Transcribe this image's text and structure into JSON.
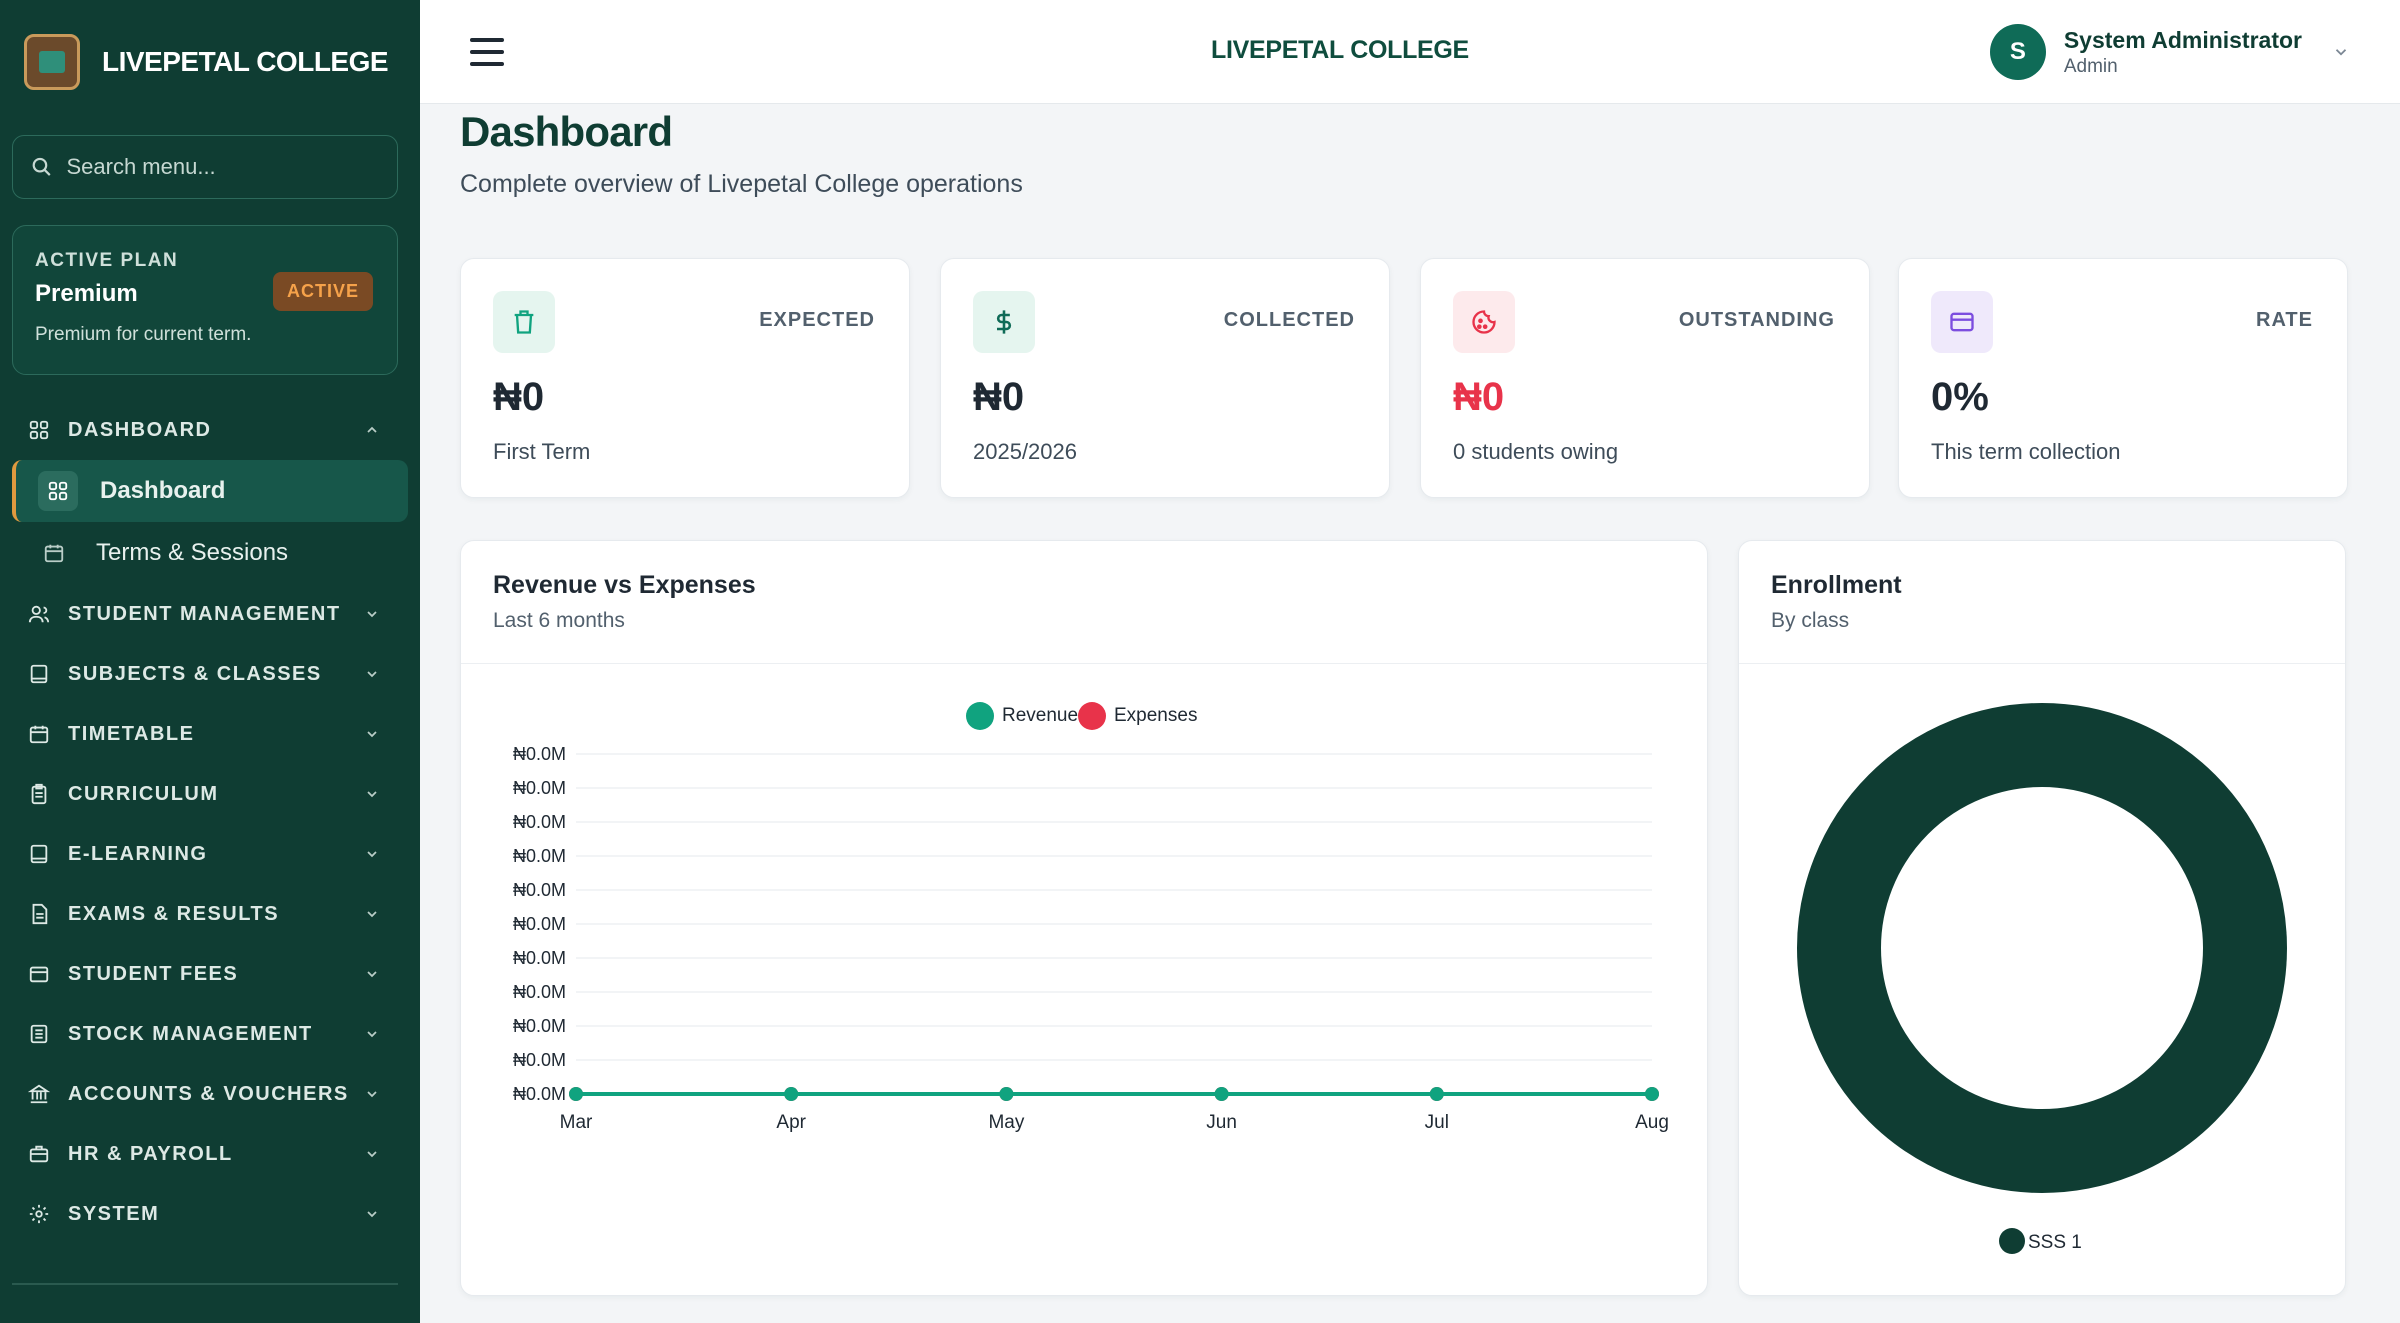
{
  "sidebar": {
    "brand": "LIVEPETAL COLLEGE",
    "search_placeholder": "Search menu...",
    "plan": {
      "label": "ACTIVE PLAN",
      "name": "Premium",
      "badge": "ACTIVE",
      "description": "Premium for current term."
    },
    "sections": [
      {
        "label": "DASHBOARD",
        "icon": "grid-icon"
      },
      {
        "label": "STUDENT MANAGEMENT",
        "icon": "users-icon"
      },
      {
        "label": "SUBJECTS & CLASSES",
        "icon": "book-icon"
      },
      {
        "label": "TIMETABLE",
        "icon": "calendar-icon"
      },
      {
        "label": "CURRICULUM",
        "icon": "clipboard-icon"
      },
      {
        "label": "E-LEARNING",
        "icon": "book-icon"
      },
      {
        "label": "EXAMS & RESULTS",
        "icon": "file-icon"
      },
      {
        "label": "STUDENT FEES",
        "icon": "wallet-icon"
      },
      {
        "label": "STOCK MANAGEMENT",
        "icon": "list-icon"
      },
      {
        "label": "ACCOUNTS & VOUCHERS",
        "icon": "bank-icon"
      },
      {
        "label": "HR & PAYROLL",
        "icon": "briefcase-icon"
      },
      {
        "label": "SYSTEM",
        "icon": "gear-icon"
      }
    ],
    "dashboard_items": [
      {
        "label": "Dashboard",
        "active": true
      },
      {
        "label": "Terms & Sessions",
        "active": false
      }
    ]
  },
  "topbar": {
    "title": "LIVEPETAL COLLEGE",
    "user_initial": "S",
    "user_name": "System Administrator",
    "user_role": "Admin"
  },
  "page": {
    "title": "Dashboard",
    "subtitle": "Complete overview of Livepetal College operations"
  },
  "stats": [
    {
      "label": "EXPECTED",
      "value": "₦0",
      "sub": "First Term",
      "icon": "trash-icon",
      "color": "#1f2933",
      "icon_bg": "#e5f5ef",
      "icon_color": "#10a37f"
    },
    {
      "label": "COLLECTED",
      "value": "₦0",
      "sub": "2025/2026",
      "icon": "dollar-icon",
      "color": "#1f2933",
      "icon_bg": "#e5f5ef",
      "icon_color": "#0f6b57"
    },
    {
      "label": "OUTSTANDING",
      "value": "₦0",
      "sub": "0 students owing",
      "icon": "cookie-icon",
      "color": "#e8334a",
      "icon_bg": "#fdeaec",
      "icon_color": "#e8334a"
    },
    {
      "label": "RATE",
      "value": "0%",
      "sub": "This term collection",
      "icon": "card-icon",
      "color": "#1f2933",
      "icon_bg": "#efe9fb",
      "icon_color": "#7c4ddf"
    }
  ],
  "revenue_panel": {
    "title": "Revenue vs Expenses",
    "subtitle": "Last 6 months"
  },
  "enrollment_panel": {
    "title": "Enrollment",
    "subtitle": "By class"
  },
  "chart_data": [
    {
      "type": "line",
      "title": "Revenue vs Expenses",
      "subtitle": "Last 6 months",
      "x": [
        "Mar",
        "Apr",
        "May",
        "Jun",
        "Jul",
        "Aug"
      ],
      "y_tick_labels": [
        "₦0.0M",
        "₦0.0M",
        "₦0.0M",
        "₦0.0M",
        "₦0.0M",
        "₦0.0M",
        "₦0.0M",
        "₦0.0M",
        "₦0.0M",
        "₦0.0M",
        "₦0.0M"
      ],
      "series": [
        {
          "name": "Revenue",
          "values": [
            0,
            0,
            0,
            0,
            0,
            0
          ],
          "color": "#10a37f"
        },
        {
          "name": "Expenses",
          "values": [
            0,
            0,
            0,
            0,
            0,
            0
          ],
          "color": "#e8334a"
        }
      ],
      "legend": "top-center",
      "grid": true
    },
    {
      "type": "pie",
      "title": "Enrollment",
      "subtitle": "By class",
      "donut": true,
      "categories": [
        "SSS 1"
      ],
      "values": [
        1
      ],
      "colors": [
        "#0f3d33"
      ],
      "legend": "bottom-center"
    }
  ]
}
